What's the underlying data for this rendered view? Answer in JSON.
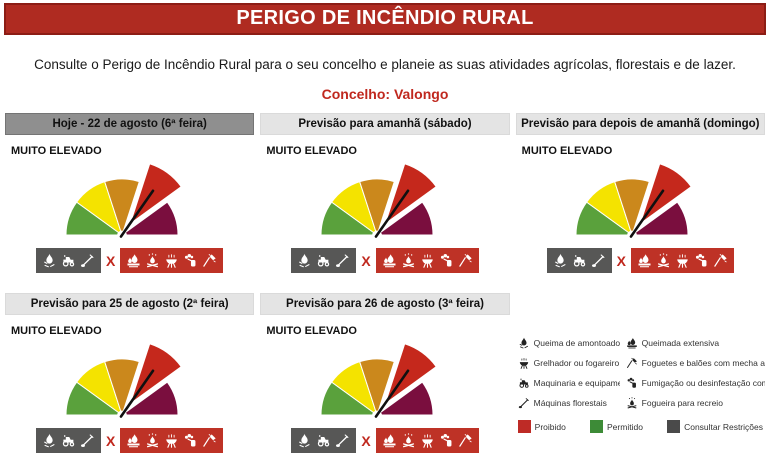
{
  "banner": {
    "title": "PERIGO DE INCÊNDIO RURAL",
    "bg": "#AF2B21",
    "border": "#8C1D15"
  },
  "intro_text": "Consulte o Perigo de Incêndio Rural para o seu concelho e planeie as suas atividades agrícolas, florestais e de lazer.",
  "concelho_text": "Concelho: Valongo",
  "accent_red": "#C0281E",
  "panels": [
    {
      "header": "Hoje - 22 de agosto (6ª feira)",
      "selected": true,
      "level": "MUITO ELEVADO"
    },
    {
      "header": "Previsão para amanhã (sábado)",
      "selected": false,
      "level": "MUITO ELEVADO"
    },
    {
      "header": "Previsão para depois de amanhã (domingo)",
      "selected": false,
      "level": "MUITO ELEVADO"
    },
    {
      "header": "Previsão para 25 de agosto (2ª feira)",
      "selected": false,
      "level": "MUITO ELEVADO"
    },
    {
      "header": "Previsão para 26 de agosto (3ª feira)",
      "selected": false,
      "level": "MUITO ELEVADO"
    }
  ],
  "gauge": {
    "type": "gauge",
    "segment_colors": [
      "#5AA13C",
      "#F4E300",
      "#CB881C",
      "#C5281C",
      "#7A0E3E"
    ],
    "active_segment_index": 3,
    "needle_color": "#101010"
  },
  "activity_bar": {
    "separator": "X",
    "restricted_box": {
      "bg": "#575756",
      "icons": [
        "pile-burning-icon",
        "tractor-icon",
        "brushcutter-icon"
      ]
    },
    "prohibited_box": {
      "bg": "#BE3226",
      "icons": [
        "extensive-burn-icon",
        "campfire-icon",
        "grill-icon",
        "fumigation-icon",
        "rocket-icon"
      ]
    }
  },
  "legend": {
    "activities": [
      {
        "icon": "pile-burning-icon",
        "label": "Queima de amontoados"
      },
      {
        "icon": "extensive-burn-icon",
        "label": "Queimada extensiva"
      },
      {
        "icon": "grill-icon",
        "label": "Grelhador ou fogareiro"
      },
      {
        "icon": "rocket-icon",
        "label": "Foguetes e balões com mecha acesa"
      },
      {
        "icon": "tractor-icon",
        "label": "Maquinaria e equipamento"
      },
      {
        "icon": "fumigation-icon",
        "label": "Fumigação ou desinfestação com fogo"
      },
      {
        "icon": "brushcutter-icon",
        "label": "Máquinas florestais"
      },
      {
        "icon": "campfire-icon",
        "label": "Fogueira para recreio"
      }
    ],
    "statuses": [
      {
        "label": "Proibido",
        "color": "#BE2B26"
      },
      {
        "label": "Permitido",
        "color": "#3D8B37"
      },
      {
        "label": "Consultar Restrições",
        "color": "#4A4A4A"
      }
    ]
  }
}
